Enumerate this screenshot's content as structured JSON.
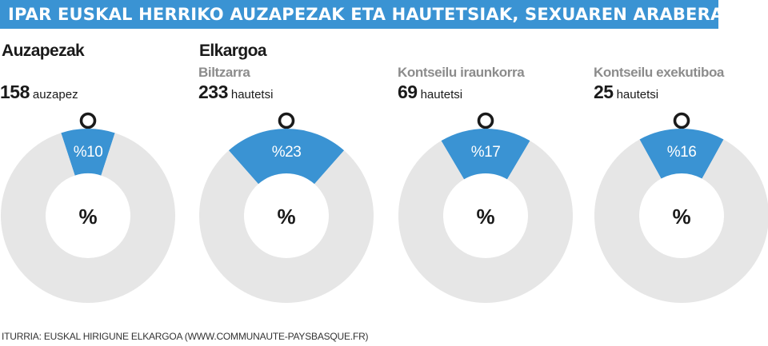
{
  "title": "IPAR EUSKAL HERRIKO AUZAPEZAK ETA HAUTETSIAK, SEXUAREN ARABERA",
  "sections": {
    "left_label": "Auzapezak",
    "right_label": "Elkargoa"
  },
  "colors": {
    "accent": "#3a93d3",
    "ring": "#e6e6e6",
    "subtitle": "#8c8c8c"
  },
  "icons": {
    "female": "female-symbol-icon"
  },
  "chart_data": [
    {
      "type": "pie",
      "title": "",
      "subtitle": "",
      "count": "158",
      "unit": "auzapez",
      "center_label": "%",
      "slices": [
        {
          "label": "%10",
          "value": 10
        },
        {
          "label": "",
          "value": 90
        }
      ]
    },
    {
      "type": "pie",
      "title": "",
      "subtitle": "Biltzarra",
      "count": "233",
      "unit": "hautetsi",
      "center_label": "%",
      "slices": [
        {
          "label": "%23",
          "value": 23
        },
        {
          "label": "",
          "value": 77
        }
      ]
    },
    {
      "type": "pie",
      "title": "",
      "subtitle": "Kontseilu iraunkorra",
      "count": "69",
      "unit": "hautetsi",
      "center_label": "%",
      "slices": [
        {
          "label": "%17",
          "value": 17
        },
        {
          "label": "",
          "value": 83
        }
      ]
    },
    {
      "type": "pie",
      "title": "",
      "subtitle": "Kontseilu exekutiboa",
      "count": "25",
      "unit": "hautetsi",
      "center_label": "%",
      "slices": [
        {
          "label": "%16",
          "value": 16
        },
        {
          "label": "",
          "value": 84
        }
      ]
    }
  ],
  "source": "ITURRIA: EUSKAL HIRIGUNE ELKARGOA (WWW.COMMUNAUTE-PAYSBASQUE.FR)"
}
